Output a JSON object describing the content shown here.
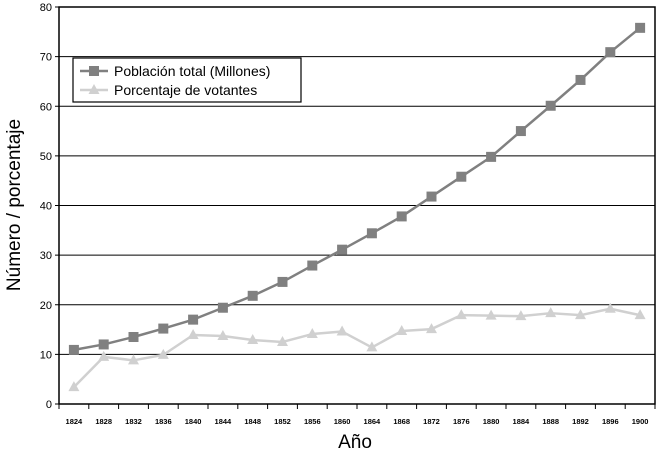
{
  "chart_data": {
    "type": "line",
    "title": "",
    "xlabel": "Año",
    "ylabel": "Número / porcentaje",
    "categories": [
      "1824",
      "1828",
      "1832",
      "1836",
      "1840",
      "1844",
      "1848",
      "1852",
      "1856",
      "1860",
      "1864",
      "1868",
      "1872",
      "1876",
      "1880",
      "1884",
      "1888",
      "1892",
      "1896",
      "1900"
    ],
    "ylim": [
      0,
      80
    ],
    "yticks": [
      0,
      10,
      20,
      30,
      40,
      50,
      60,
      70,
      80
    ],
    "grid": "horizontal",
    "legend_position": "top-left",
    "series": [
      {
        "name": "Población total (Millones)",
        "marker": "square",
        "color": "#808080",
        "values": [
          10.9,
          12.0,
          13.5,
          15.2,
          17.0,
          19.4,
          21.8,
          24.6,
          27.9,
          31.1,
          34.4,
          37.8,
          41.8,
          45.8,
          49.8,
          55.0,
          60.1,
          65.3,
          70.9,
          75.8
        ]
      },
      {
        "name": "Porcentaje de votantes",
        "marker": "triangle",
        "color": "#d0d0d0",
        "values": [
          3.4,
          9.5,
          8.8,
          9.9,
          13.9,
          13.7,
          12.9,
          12.5,
          14.1,
          14.6,
          11.4,
          14.7,
          15.1,
          17.9,
          17.8,
          17.7,
          18.3,
          17.9,
          19.2,
          17.9
        ]
      }
    ]
  }
}
